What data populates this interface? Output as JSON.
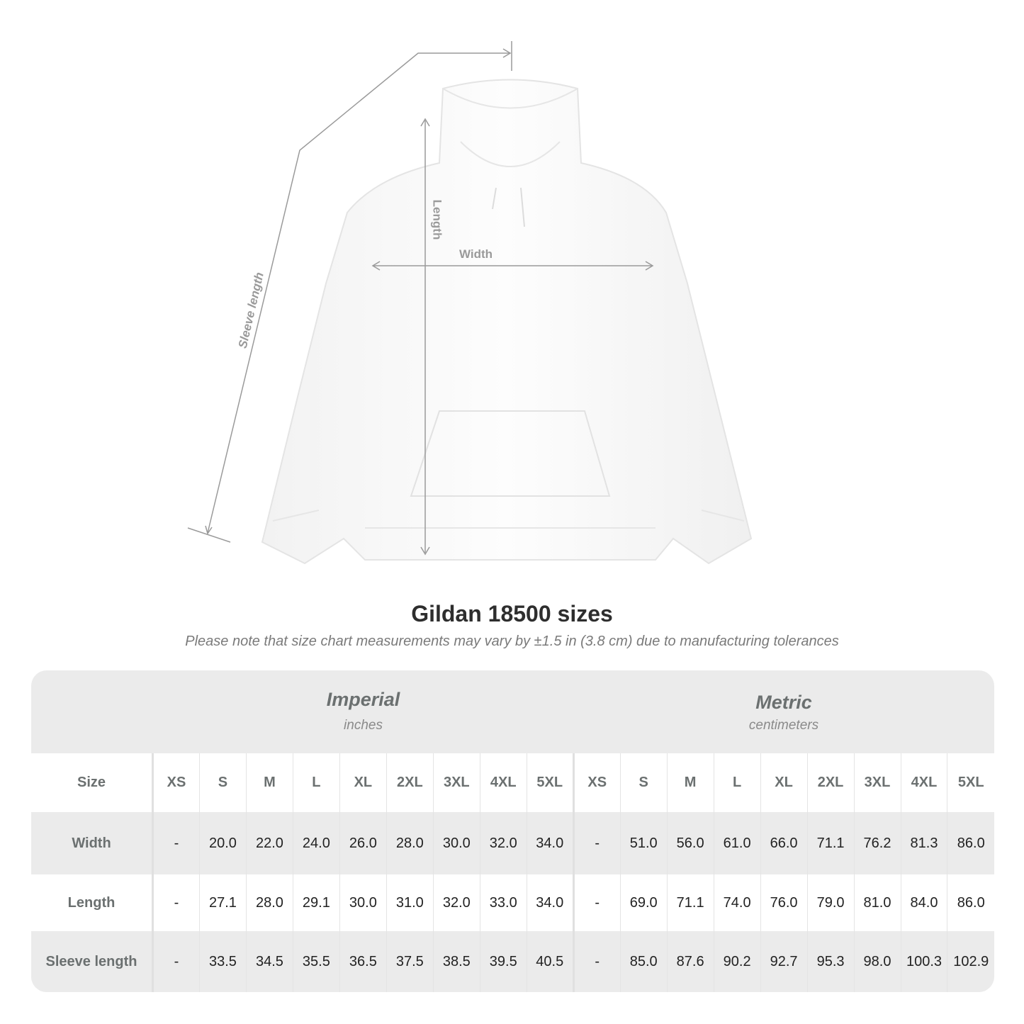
{
  "figure": {
    "labels": {
      "length": "Length",
      "width": "Width",
      "sleeve_length": "Sleeve length"
    }
  },
  "title": "Gildan 18500 sizes",
  "subtitle": "Please note that size chart measurements may vary by ±1.5 in (3.8 cm) due to manufacturing tolerances",
  "table": {
    "imperial": {
      "name": "Imperial",
      "unit": "inches"
    },
    "metric": {
      "name": "Metric",
      "unit": "centimeters"
    },
    "size_label": "Size",
    "sizes": [
      "XS",
      "S",
      "M",
      "L",
      "XL",
      "2XL",
      "3XL",
      "4XL",
      "5XL"
    ],
    "rows": [
      {
        "label": "Width",
        "imperial": [
          "-",
          "20.0",
          "22.0",
          "24.0",
          "26.0",
          "28.0",
          "30.0",
          "32.0",
          "34.0"
        ],
        "metric": [
          "-",
          "51.0",
          "56.0",
          "61.0",
          "66.0",
          "71.1",
          "76.2",
          "81.3",
          "86.0"
        ]
      },
      {
        "label": "Length",
        "imperial": [
          "-",
          "27.1",
          "28.0",
          "29.1",
          "30.0",
          "31.0",
          "32.0",
          "33.0",
          "34.0"
        ],
        "metric": [
          "-",
          "69.0",
          "71.1",
          "74.0",
          "76.0",
          "79.0",
          "81.0",
          "84.0",
          "86.0"
        ]
      },
      {
        "label": "Sleeve length",
        "imperial": [
          "-",
          "33.5",
          "34.5",
          "35.5",
          "36.5",
          "37.5",
          "38.5",
          "39.5",
          "40.5"
        ],
        "metric": [
          "-",
          "85.0",
          "87.6",
          "90.2",
          "92.7",
          "95.3",
          "98.0",
          "100.3",
          "102.9"
        ]
      }
    ]
  }
}
